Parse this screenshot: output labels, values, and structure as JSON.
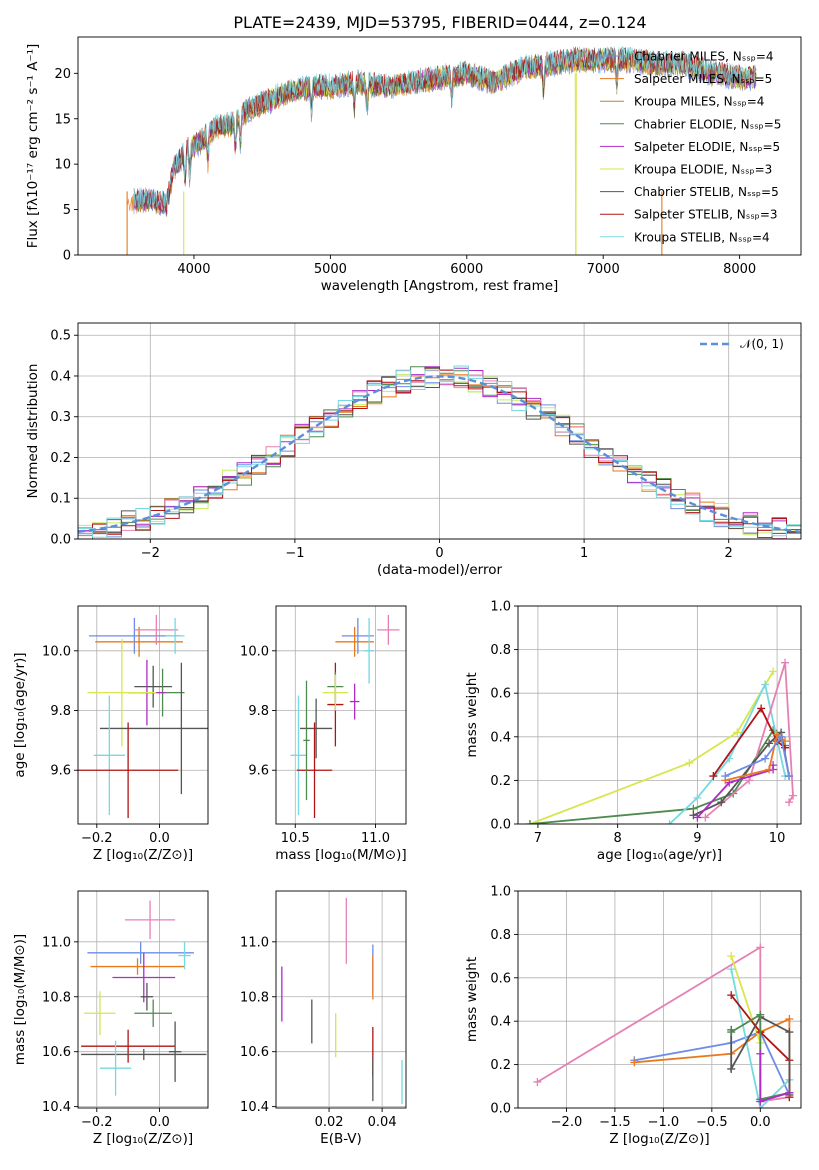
{
  "figure_title": "PLATE=2439, MJD=53795, FIBERID=0444, z=0.124",
  "colors": [
    "#6d8de8",
    "#e8791c",
    "#b8862a",
    "#4f8a4f",
    "#b02cc8",
    "#d7e64a",
    "#555555",
    "#b01515",
    "#76d8e0"
  ],
  "extra_colors": {
    "pink": "#e680b4",
    "lime": "#c8ec64",
    "gaussian": "#5b8fd9"
  },
  "chart_data": [
    {
      "id": "spectrum",
      "type": "line",
      "title": "PLATE=2439, MJD=53795, FIBERID=0444, z=0.124",
      "xlabel": "wavelength [Angstrom, rest frame]",
      "ylabel": "Flux [fλ10⁻¹⁷ erg cm⁻² s⁻¹ A⁻¹]",
      "xlim": [
        3150,
        8450
      ],
      "ylim": [
        0,
        24
      ],
      "xticks": [
        4000,
        5000,
        6000,
        7000,
        8000
      ],
      "yticks": [
        0,
        5,
        10,
        15,
        20
      ],
      "legend_position": "top-right",
      "series": [
        {
          "name": "Chabrier MILES, N_SSP=4"
        },
        {
          "name": "Salpeter MILES, N_SSP=5"
        },
        {
          "name": "Kroupa MILES, N_SSP=4"
        },
        {
          "name": "Chabrier ELODIE, N_SSP=5"
        },
        {
          "name": "Salpeter ELODIE, N_SSP=5"
        },
        {
          "name": "Kroupa ELODIE, N_SSP=3"
        },
        {
          "name": "Chabrier STELIB, N_SSP=5"
        },
        {
          "name": "Salpeter STELIB, N_SSP=3"
        },
        {
          "name": "Kroupa STELIB, N_SSP=4"
        }
      ],
      "continuum": {
        "x": [
          3550,
          3700,
          3800,
          3850,
          3950,
          4050,
          4150,
          4300,
          4400,
          4550,
          4700,
          4860,
          5000,
          5200,
          5400,
          5600,
          5800,
          6000,
          6200,
          6400,
          6600,
          6800,
          7000,
          7200,
          7400,
          7600,
          7800,
          8000,
          8100
        ],
        "y": [
          6.0,
          6.0,
          5.5,
          9.5,
          11.5,
          12.5,
          14.0,
          14.5,
          16.0,
          17.0,
          18.0,
          18.5,
          18.5,
          19.0,
          18.5,
          19.0,
          19.5,
          20.0,
          19.0,
          20.5,
          21.0,
          21.5,
          21.5,
          21.5,
          21.0,
          21.0,
          20.0,
          19.5,
          19.5
        ]
      },
      "absorption_x": [
        3934,
        3969,
        4102,
        4304,
        4340,
        4861,
        5175,
        5270,
        5890,
        6563,
        7100
      ],
      "cutoffs": [
        {
          "color_index": 1,
          "x": 3510,
          "side": "lower"
        },
        {
          "color_index": 5,
          "x": 3925,
          "side": "lower"
        },
        {
          "color_index": 5,
          "x": 6800,
          "side": "gap"
        },
        {
          "color_index": 1,
          "x": 7430,
          "side": "upper"
        }
      ]
    },
    {
      "id": "residuals",
      "type": "histogram",
      "xlabel": "(data-model)/error",
      "ylabel": "Normed distribution",
      "xlim": [
        -2.5,
        2.5
      ],
      "ylim": [
        0,
        0.53
      ],
      "xticks": [
        -2,
        -1,
        0,
        1,
        2
      ],
      "yticks": [
        0.0,
        0.1,
        0.2,
        0.3,
        0.4,
        0.5
      ],
      "bin_width": 0.1,
      "legend": [
        "𝒩(0, 1)"
      ],
      "legend_position": "top-right"
    },
    {
      "id": "age_vs_Z",
      "type": "scatter",
      "xlabel": "Z [log₁₀(Z/Z⊙)]",
      "ylabel": "age  [log₁₀(age/yr)]",
      "xlim": [
        -0.26,
        0.155
      ],
      "ylim": [
        9.42,
        10.15
      ],
      "xticks": [
        -0.2,
        0.0
      ],
      "xticklabels": [
        "−0.2",
        "0.0"
      ],
      "yticks": [
        9.6,
        9.8,
        10.0
      ],
      "yticklabels": [
        "9.6",
        "9.8",
        "10.0"
      ],
      "points": [
        {
          "c": "#6d8de8",
          "x": -0.08,
          "xe": 0.145,
          "y": 10.05,
          "ye": 0.06
        },
        {
          "c": "#e8791c",
          "x": -0.065,
          "xe": 0.14,
          "y": 10.03,
          "ye": 0.05
        },
        {
          "c": "#e680b4",
          "x": -0.01,
          "xe": 0.07,
          "y": 10.07,
          "ye": 0.05
        },
        {
          "c": "#555555",
          "x": -0.02,
          "xe": 0.06,
          "y": 9.88,
          "ye": 0.07
        },
        {
          "c": "#4f8a4f",
          "x": 0.01,
          "xe": 0.07,
          "y": 9.86,
          "ye": 0.08
        },
        {
          "c": "#b02cc8",
          "x": -0.04,
          "xe": 0.06,
          "y": 9.86,
          "ye": 0.11
        },
        {
          "c": "#d7e64a",
          "x": -0.12,
          "xe": 0.11,
          "y": 9.86,
          "ye": 0.18
        },
        {
          "c": "#555555",
          "x": 0.07,
          "xe": 0.26,
          "y": 9.74,
          "ye": 0.22
        },
        {
          "c": "#76d8e0",
          "x": -0.16,
          "xe": 0.05,
          "y": 9.65,
          "ye": 0.2
        },
        {
          "c": "#b01515",
          "x": -0.1,
          "xe": 0.16,
          "y": 9.6,
          "ye": 0.16
        },
        {
          "c": "#76d8e0",
          "x": 0.05,
          "xe": 0.03,
          "y": 10.05,
          "ye": 0.06
        }
      ]
    },
    {
      "id": "age_vs_mass",
      "type": "scatter",
      "xlabel": "mass [log₁₀(M/M⊙)]",
      "ylabel": "",
      "xlim": [
        10.38,
        11.19
      ],
      "ylim": [
        9.42,
        10.15
      ],
      "xticks": [
        10.5,
        11.0
      ],
      "xticklabels": [
        "10.5",
        "11.0"
      ],
      "yticks": [
        9.6,
        9.8,
        10.0
      ],
      "yticklabels": [
        "9.6",
        "9.8",
        "10.0"
      ],
      "points": [
        {
          "c": "#6d8de8",
          "x": 10.89,
          "xe": 0.1,
          "y": 10.05,
          "ye": 0.06
        },
        {
          "c": "#e8791c",
          "x": 10.87,
          "xe": 0.12,
          "y": 10.03,
          "ye": 0.05
        },
        {
          "c": "#e680b4",
          "x": 11.08,
          "xe": 0.07,
          "y": 10.07,
          "ye": 0.05
        },
        {
          "c": "#76d8e0",
          "x": 10.96,
          "xe": 0.03,
          "y": 10.0,
          "ye": 0.11
        },
        {
          "c": "#b01515",
          "x": 10.75,
          "xe": 0.05,
          "y": 9.82,
          "ye": 0.14
        },
        {
          "c": "#b02cc8",
          "x": 10.87,
          "xe": 0.03,
          "y": 9.83,
          "ye": 0.06
        },
        {
          "c": "#4f8a4f",
          "x": 10.75,
          "xe": 0.05,
          "y": 9.88,
          "ye": 0.05
        },
        {
          "c": "#d7e64a",
          "x": 10.75,
          "xe": 0.08,
          "y": 9.86,
          "ye": 0.06
        },
        {
          "c": "#555555",
          "x": 10.63,
          "xe": 0.1,
          "y": 9.74,
          "ye": 0.1
        },
        {
          "c": "#76d8e0",
          "x": 10.52,
          "xe": 0.05,
          "y": 9.65,
          "ye": 0.2
        },
        {
          "c": "#b01515",
          "x": 10.62,
          "xe": 0.11,
          "y": 9.6,
          "ye": 0.16
        },
        {
          "c": "#4f8a4f",
          "x": 10.57,
          "xe": 0.02,
          "y": 9.7,
          "ye": 0.2
        }
      ]
    },
    {
      "id": "weight_vs_age",
      "type": "line",
      "xlabel": "age  [log₁₀(age/yr)]",
      "ylabel": "mass weight",
      "xlim": [
        6.75,
        10.3
      ],
      "ylim": [
        0,
        1.0
      ],
      "xticks": [
        7,
        8,
        9,
        10
      ],
      "yticks": [
        0.0,
        0.2,
        0.4,
        0.6,
        0.8,
        1.0
      ],
      "series": [
        {
          "c": "#d7e64a",
          "x": [
            6.9,
            8.9,
            9.5,
            9.95
          ],
          "y": [
            0.0,
            0.28,
            0.42,
            0.7
          ]
        },
        {
          "c": "#4f8a4f",
          "x": [
            6.9,
            8.95,
            9.45,
            9.95,
            10.1
          ],
          "y": [
            0.0,
            0.07,
            0.14,
            0.43,
            0.36
          ]
        },
        {
          "c": "#76d8e0",
          "x": [
            8.65,
            9.0,
            9.4,
            9.85,
            10.1
          ],
          "y": [
            0.0,
            0.12,
            0.3,
            0.64,
            0.22
          ]
        },
        {
          "c": "#e680b4",
          "x": [
            9.1,
            9.65,
            10.1,
            10.2,
            10.15
          ],
          "y": [
            0.03,
            0.2,
            0.74,
            0.13,
            0.1
          ]
        },
        {
          "c": "#555555",
          "x": [
            8.95,
            9.3,
            9.9,
            10.05,
            10.15
          ],
          "y": [
            0.04,
            0.1,
            0.37,
            0.42,
            0.22
          ]
        },
        {
          "c": "#b01515",
          "x": [
            9.2,
            9.8,
            10.0,
            10.1
          ],
          "y": [
            0.22,
            0.53,
            0.38,
            0.35
          ]
        },
        {
          "c": "#b02cc8",
          "x": [
            9.0,
            9.4,
            9.95,
            9.95
          ],
          "y": [
            0.03,
            0.19,
            0.25,
            0.27
          ]
        },
        {
          "c": "#e8791c",
          "x": [
            9.35,
            9.9,
            10.0,
            10.1
          ],
          "y": [
            0.2,
            0.25,
            0.41,
            0.38
          ]
        },
        {
          "c": "#6d8de8",
          "x": [
            9.35,
            9.85,
            10.05,
            10.15
          ],
          "y": [
            0.22,
            0.3,
            0.4,
            0.22
          ]
        }
      ]
    },
    {
      "id": "mass_vs_Z",
      "type": "scatter",
      "xlabel": "Z [log₁₀(Z/Z⊙)]",
      "ylabel": "mass [log₁₀(M/M⊙)]",
      "xlim": [
        -0.26,
        0.155
      ],
      "ylim": [
        10.395,
        11.185
      ],
      "xticks": [
        -0.2,
        0.0
      ],
      "xticklabels": [
        "−0.2",
        "0.0"
      ],
      "yticks": [
        10.4,
        10.6,
        10.8,
        11.0
      ],
      "yticklabels": [
        "10.4",
        "10.6",
        "10.8",
        "11.0"
      ],
      "points": [
        {
          "c": "#e680b4",
          "x": -0.03,
          "xe": 0.08,
          "y": 11.08,
          "ye": 0.07
        },
        {
          "c": "#6d8de8",
          "x": -0.06,
          "xe": 0.17,
          "y": 10.96,
          "ye": 0.04
        },
        {
          "c": "#e8791c",
          "x": -0.07,
          "xe": 0.15,
          "y": 10.91,
          "ye": 0.03
        },
        {
          "c": "#76d8e0",
          "x": 0.08,
          "xe": 0.02,
          "y": 10.95,
          "ye": 0.05
        },
        {
          "c": "#b02cc8",
          "x": -0.05,
          "xe": 0.1,
          "y": 10.87,
          "ye": 0.09
        },
        {
          "c": "#555555",
          "x": -0.04,
          "xe": 0.02,
          "y": 10.8,
          "ye": 0.05
        },
        {
          "c": "#d7e64a",
          "x": -0.19,
          "xe": 0.05,
          "y": 10.74,
          "ye": 0.08
        },
        {
          "c": "#4f8a4f",
          "x": -0.02,
          "xe": 0.06,
          "y": 10.74,
          "ye": 0.05
        },
        {
          "c": "#b01515",
          "x": -0.1,
          "xe": 0.15,
          "y": 10.62,
          "ye": 0.06
        },
        {
          "c": "#555555",
          "x": 0.05,
          "xe": 0.02,
          "y": 10.6,
          "ye": 0.11
        },
        {
          "c": "#555555",
          "x": -0.05,
          "xe": 0.2,
          "y": 10.59,
          "ye": 0.02
        },
        {
          "c": "#76d8e0",
          "x": -0.14,
          "xe": 0.05,
          "y": 10.54,
          "ye": 0.1
        }
      ]
    },
    {
      "id": "mass_vs_ebv",
      "type": "scatter",
      "xlabel": "E(B-V)",
      "ylabel": "",
      "xlim": [
        0.0,
        0.049
      ],
      "ylim": [
        10.395,
        11.185
      ],
      "xticks": [
        0.02,
        0.04
      ],
      "xticklabels": [
        "0.02",
        "0.04"
      ],
      "yticks": [
        10.4,
        10.6,
        10.8,
        11.0
      ],
      "yticklabels": [
        "10.4",
        "10.6",
        "10.8",
        "11.0"
      ],
      "points": [
        {
          "c": "#e680b4",
          "x": 0.0265,
          "y": 11.04,
          "ye": 0.12
        },
        {
          "c": "#6d8de8",
          "x": 0.0365,
          "y": 10.9,
          "ye": 0.09
        },
        {
          "c": "#e8791c",
          "x": 0.0365,
          "y": 10.87,
          "ye": 0.08
        },
        {
          "c": "#b02cc8",
          "x": 0.0022,
          "y": 10.81,
          "ye": 0.1
        },
        {
          "c": "#555555",
          "x": 0.0135,
          "y": 10.71,
          "ye": 0.08
        },
        {
          "c": "#d7e64a",
          "x": 0.0225,
          "y": 10.66,
          "ye": 0.08
        },
        {
          "c": "#b01515",
          "x": 0.0365,
          "y": 10.6,
          "ye": 0.09
        },
        {
          "c": "#555555",
          "x": 0.0365,
          "y": 10.5,
          "ye": 0.08
        },
        {
          "c": "#76d8e0",
          "x": 0.0475,
          "y": 10.49,
          "ye": 0.08
        }
      ]
    },
    {
      "id": "weight_vs_Z",
      "type": "line",
      "xlabel": "Z [log₁₀(Z/Z⊙)]",
      "ylabel": "mass weight",
      "xlim": [
        -2.5,
        0.42
      ],
      "ylim": [
        0,
        1.0
      ],
      "xticks": [
        -2.0,
        -1.5,
        -1.0,
        -0.5,
        0.0
      ],
      "xticklabels": [
        "−2.0",
        "−1.5",
        "−1.0",
        "−0.5",
        "0.0"
      ],
      "yticks": [
        0.0,
        0.2,
        0.4,
        0.6,
        0.8,
        1.0
      ],
      "series": [
        {
          "c": "#e680b4",
          "x": [
            -2.3,
            0.0,
            0.0,
            0.3
          ],
          "y": [
            0.12,
            0.74,
            0.03,
            0.05
          ]
        },
        {
          "c": "#6d8de8",
          "x": [
            -1.3,
            -0.3,
            0.0,
            0.3
          ],
          "y": [
            0.22,
            0.3,
            0.35,
            0.06
          ]
        },
        {
          "c": "#e8791c",
          "x": [
            -1.3,
            -0.3,
            0.0,
            0.3,
            0.3
          ],
          "y": [
            0.21,
            0.25,
            0.35,
            0.41,
            0.05
          ]
        },
        {
          "c": "#d7e64a",
          "x": [
            -0.3,
            0.0,
            0.0
          ],
          "y": [
            0.7,
            0.3,
            0.0
          ]
        },
        {
          "c": "#76d8e0",
          "x": [
            -0.3,
            0.0,
            0.3
          ],
          "y": [
            0.64,
            0.0,
            0.13
          ]
        },
        {
          "c": "#b01515",
          "x": [
            -0.3,
            0.0,
            0.3,
            0.3
          ],
          "y": [
            0.52,
            0.35,
            0.22,
            0.05
          ]
        },
        {
          "c": "#555555",
          "x": [
            -0.3,
            -0.3,
            0.0,
            0.3,
            0.3
          ],
          "y": [
            0.36,
            0.18,
            0.42,
            0.35,
            0.06
          ]
        },
        {
          "c": "#4f8a4f",
          "x": [
            -0.3,
            0.0,
            0.0,
            0.3
          ],
          "y": [
            0.35,
            0.43,
            0.04,
            0.07
          ]
        },
        {
          "c": "#b02cc8",
          "x": [
            0.0,
            0.0,
            0.3
          ],
          "y": [
            0.25,
            0.03,
            0.07
          ]
        }
      ]
    }
  ]
}
